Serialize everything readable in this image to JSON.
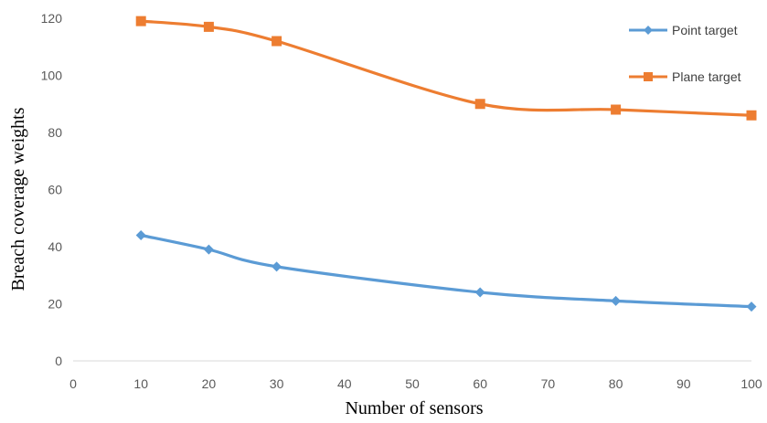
{
  "chart_data": {
    "type": "line",
    "xlabel": "Number of sensors",
    "ylabel": "Breach coverage weights",
    "xlim": [
      0,
      100
    ],
    "ylim": [
      0,
      120
    ],
    "xticks": [
      0,
      10,
      20,
      30,
      40,
      50,
      60,
      70,
      80,
      90,
      100
    ],
    "yticks": [
      0,
      20,
      40,
      60,
      80,
      100,
      120
    ],
    "grid": false,
    "legend_position": "top-right",
    "series": [
      {
        "name": "Point target",
        "color": "#5B9BD5",
        "marker": "diamond",
        "x": [
          10,
          20,
          30,
          60,
          80,
          100
        ],
        "y": [
          44,
          39,
          33,
          24,
          21,
          19
        ]
      },
      {
        "name": "Plane target",
        "color": "#ED7D31",
        "marker": "square",
        "x": [
          10,
          20,
          30,
          60,
          80,
          100
        ],
        "y": [
          119,
          117,
          112,
          90,
          88,
          86
        ]
      }
    ]
  }
}
